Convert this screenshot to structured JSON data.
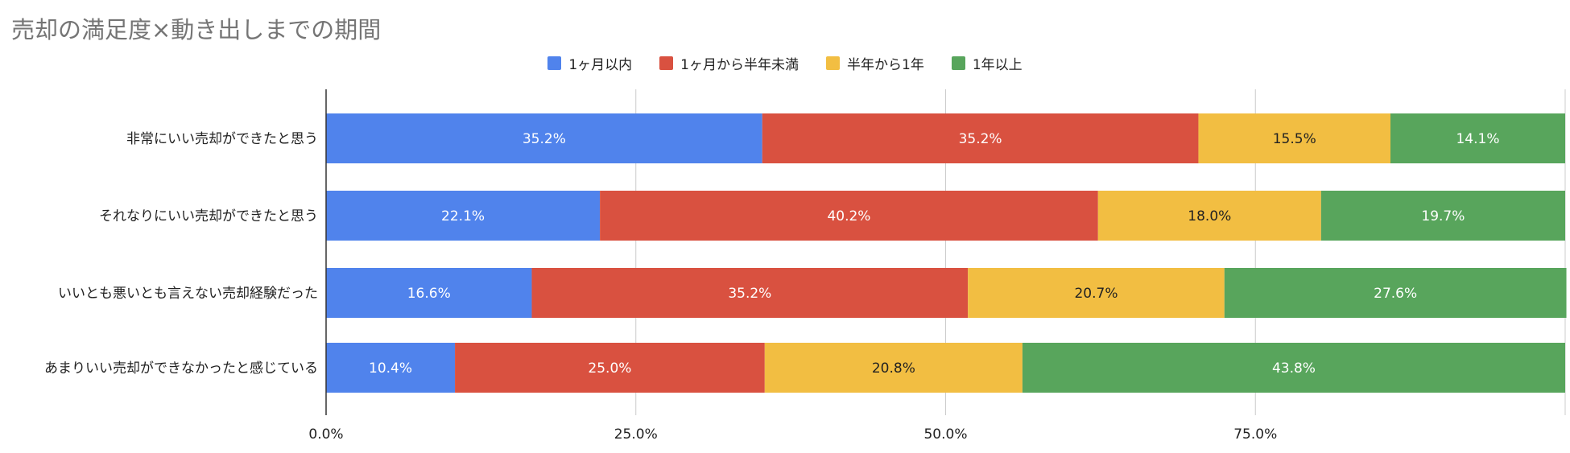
{
  "chart_data": {
    "type": "bar",
    "orientation": "horizontal",
    "stacked": true,
    "title": "売却の満足度×動き出しまでの期間",
    "categories": [
      "非常にいい売却ができたと思う",
      "それなりにいい売却ができたと思う",
      "いいとも悪いとも言えない売却経験だった",
      "あまりいい売却ができなかったと感じている"
    ],
    "series": [
      {
        "name": "1ヶ月以内",
        "color": "#5083ec",
        "label_color": "#ffffff",
        "values": [
          35.2,
          22.1,
          16.6,
          10.4
        ]
      },
      {
        "name": "1ヶ月から半年未満",
        "color": "#d95140",
        "label_color": "#ffffff",
        "values": [
          35.2,
          40.2,
          35.2,
          25.0
        ]
      },
      {
        "name": "半年から1年",
        "color": "#f2be42",
        "label_color": "#222222",
        "values": [
          15.5,
          18.0,
          20.7,
          20.8
        ]
      },
      {
        "name": "1年以上",
        "color": "#58a55c",
        "label_color": "#ffffff",
        "values": [
          14.1,
          19.7,
          27.6,
          43.8
        ]
      }
    ],
    "data_labels": [
      [
        "35.2%",
        "22.1%",
        "16.6%",
        "10.4%"
      ],
      [
        "35.2%",
        "40.2%",
        "35.2%",
        "25.0%"
      ],
      [
        "15.5%",
        "18.0%",
        "20.7%",
        "20.8%"
      ],
      [
        "14.1%",
        "19.7%",
        "27.6%",
        "43.8%"
      ]
    ],
    "xlim": [
      0,
      100
    ],
    "x_ticks": [
      0,
      25,
      50,
      75
    ],
    "x_tick_labels": [
      "0.0%",
      "25.0%",
      "50.0%",
      "75.0%"
    ],
    "grid": "vertical",
    "legend_position": "top-center"
  }
}
